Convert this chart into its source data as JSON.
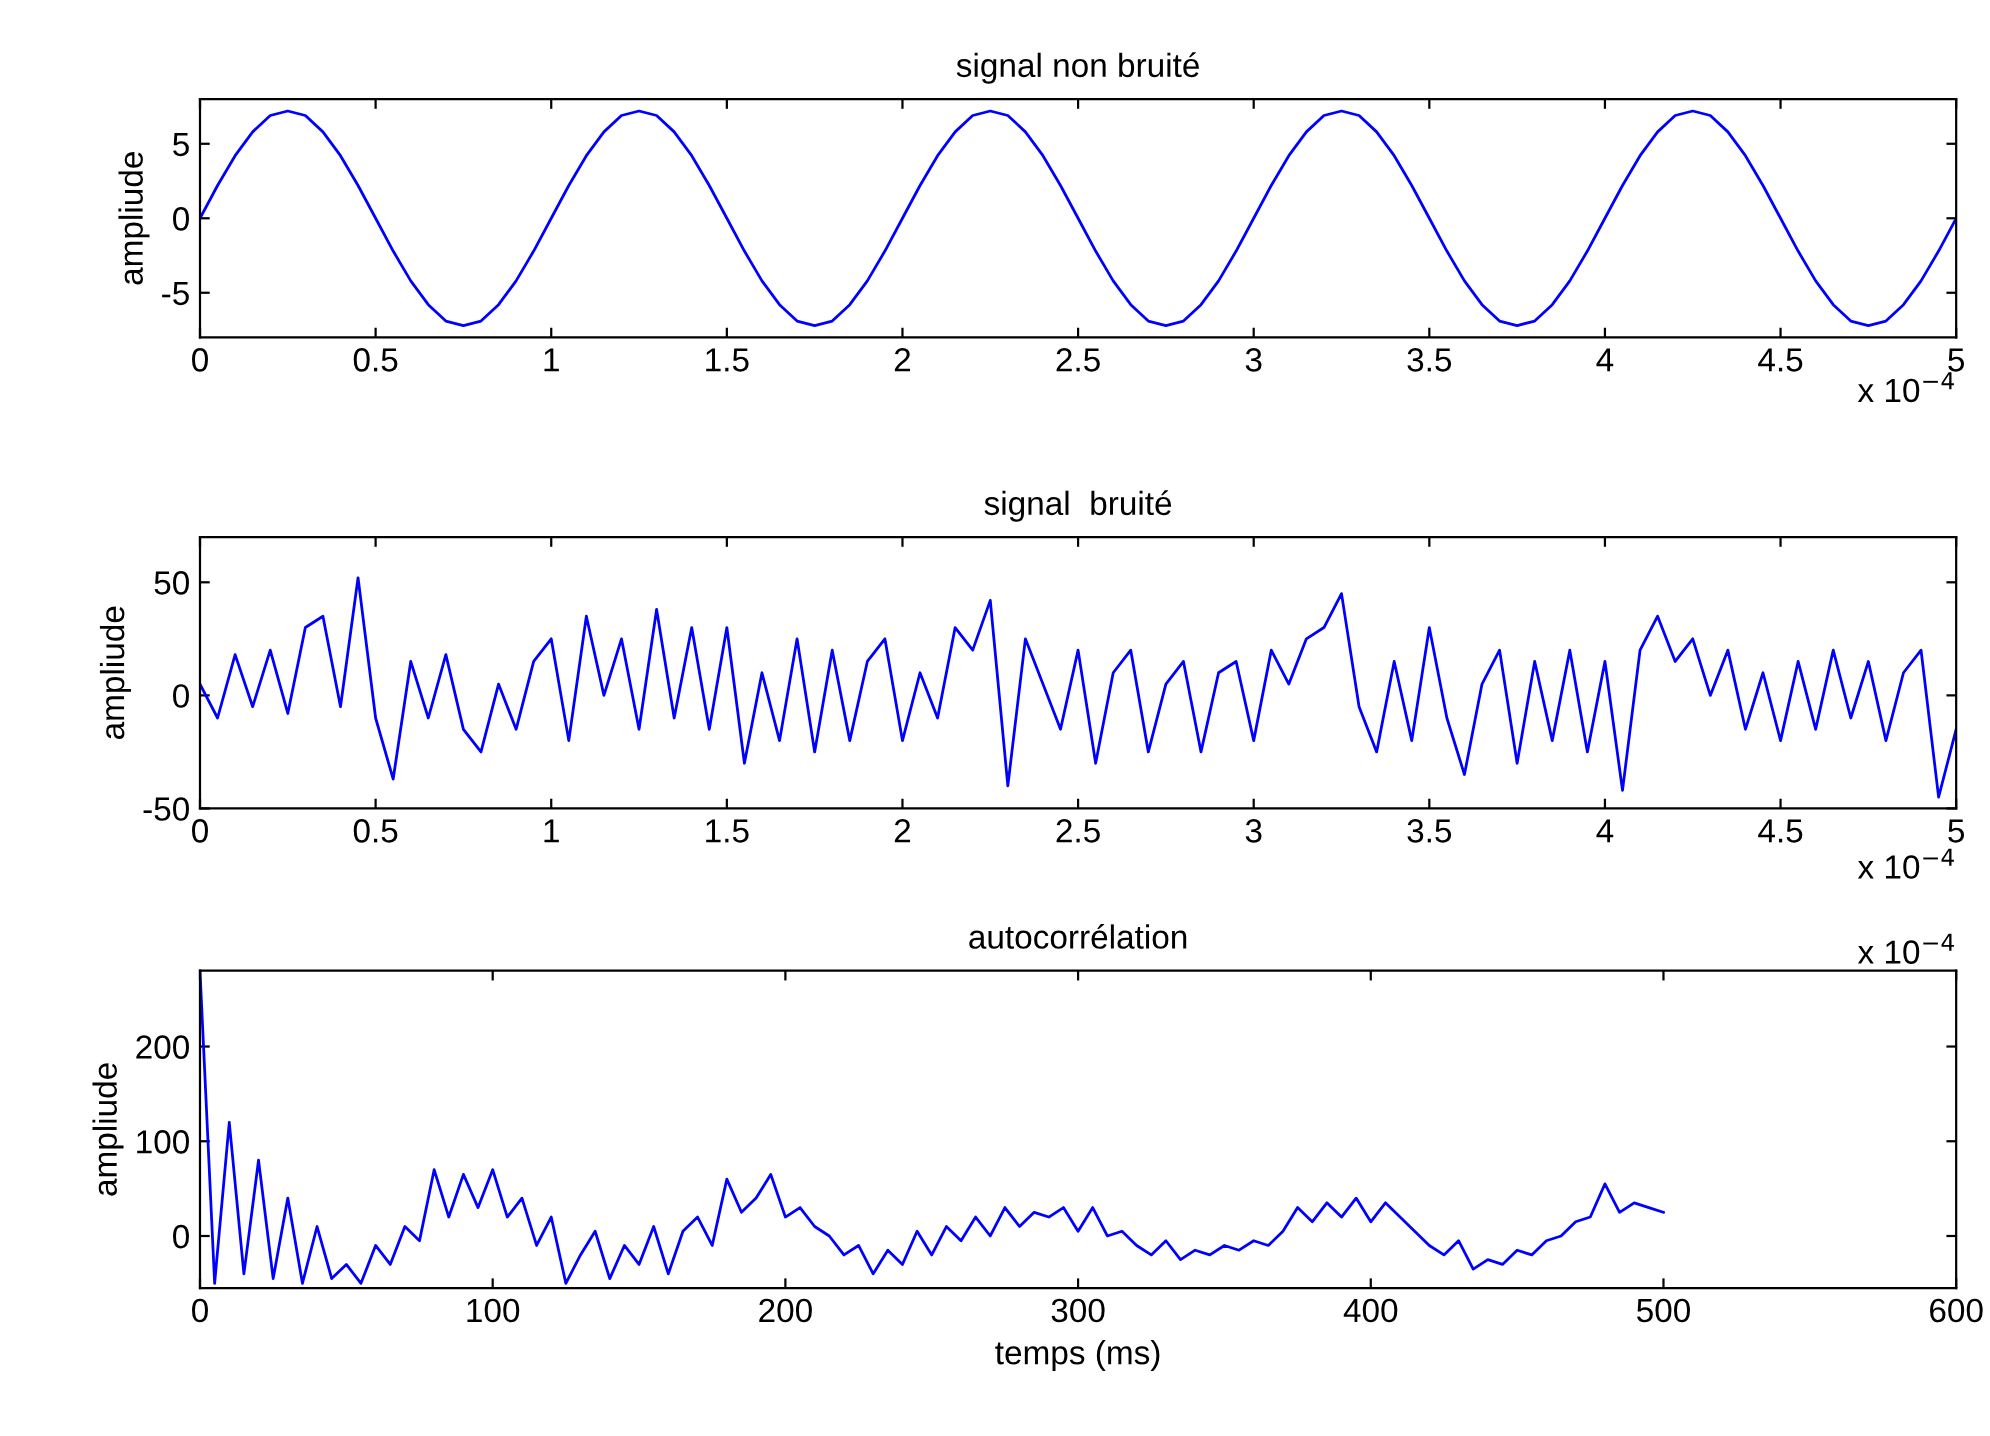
{
  "chart_data": [
    {
      "type": "line",
      "title": "signal non bruité",
      "ylabel": "ampliude",
      "color": "#0000ff",
      "x": [
        0,
        0.05,
        0.1,
        0.15,
        0.2,
        0.25,
        0.3,
        0.35,
        0.4,
        0.45,
        0.5,
        0.55,
        0.6,
        0.65,
        0.7,
        0.75,
        0.8,
        0.85,
        0.9,
        0.95,
        1,
        1.05,
        1.1,
        1.15,
        1.2,
        1.25,
        1.3,
        1.35,
        1.4,
        1.45,
        1.5,
        1.55,
        1.6,
        1.65,
        1.7,
        1.75,
        1.8,
        1.85,
        1.9,
        1.95,
        2,
        2.05,
        2.1,
        2.15,
        2.2,
        2.25,
        2.3,
        2.35,
        2.4,
        2.45,
        2.5,
        2.55,
        2.6,
        2.65,
        2.7,
        2.75,
        2.8,
        2.85,
        2.9,
        2.95,
        3,
        3.05,
        3.1,
        3.15,
        3.2,
        3.25,
        3.3,
        3.35,
        3.4,
        3.45,
        3.5,
        3.55,
        3.6,
        3.65,
        3.7,
        3.75,
        3.8,
        3.85,
        3.9,
        3.95,
        4,
        4.05,
        4.1,
        4.15,
        4.2,
        4.25,
        4.3,
        4.35,
        4.4,
        4.45,
        4.5,
        4.55,
        4.6,
        4.65,
        4.7,
        4.75,
        4.8,
        4.85,
        4.9,
        4.95,
        5
      ],
      "values": [
        0,
        2.2,
        4.2,
        5.8,
        6.9,
        7.2,
        6.9,
        5.8,
        4.2,
        2.2,
        0,
        -2.2,
        -4.2,
        -5.8,
        -6.9,
        -7.2,
        -6.9,
        -5.8,
        -4.2,
        -2.2,
        0,
        2.2,
        4.2,
        5.8,
        6.9,
        7.2,
        6.9,
        5.8,
        4.2,
        2.2,
        0,
        -2.2,
        -4.2,
        -5.8,
        -6.9,
        -7.2,
        -6.9,
        -5.8,
        -4.2,
        -2.2,
        0,
        2.2,
        4.2,
        5.8,
        6.9,
        7.2,
        6.9,
        5.8,
        4.2,
        2.2,
        0,
        -2.2,
        -4.2,
        -5.8,
        -6.9,
        -7.2,
        -6.9,
        -5.8,
        -4.2,
        -2.2,
        0,
        2.2,
        4.2,
        5.8,
        6.9,
        7.2,
        6.9,
        5.8,
        4.2,
        2.2,
        0,
        -2.2,
        -4.2,
        -5.8,
        -6.9,
        -7.2,
        -6.9,
        -5.8,
        -4.2,
        -2.2,
        0,
        2.2,
        4.2,
        5.8,
        6.9,
        7.2,
        6.9,
        5.8,
        4.2,
        2.2,
        0,
        -2.2,
        -4.2,
        -5.8,
        -6.9,
        -7.2,
        -6.9,
        -5.8,
        -4.2,
        -2.2,
        0
      ],
      "xlim": [
        0,
        5
      ],
      "ylim": [
        -8,
        8
      ],
      "yticks": [
        -5,
        0,
        5
      ],
      "xticks": [
        0,
        0.5,
        1,
        1.5,
        2,
        2.5,
        3,
        3.5,
        4,
        4.5,
        5
      ],
      "annotations": [
        "x 10$^{−4}$"
      ]
    },
    {
      "type": "line",
      "title": "signal  bruité",
      "ylabel": "ampliude",
      "color": "#0000ff",
      "x": [
        0,
        0.05,
        0.1,
        0.15,
        0.2,
        0.25,
        0.3,
        0.35,
        0.4,
        0.45,
        0.5,
        0.55,
        0.6,
        0.65,
        0.7,
        0.75,
        0.8,
        0.85,
        0.9,
        0.95,
        1,
        1.05,
        1.1,
        1.15,
        1.2,
        1.25,
        1.3,
        1.35,
        1.4,
        1.45,
        1.5,
        1.55,
        1.6,
        1.65,
        1.7,
        1.75,
        1.8,
        1.85,
        1.9,
        1.95,
        2,
        2.05,
        2.1,
        2.15,
        2.2,
        2.25,
        2.3,
        2.35,
        2.4,
        2.45,
        2.5,
        2.55,
        2.6,
        2.65,
        2.7,
        2.75,
        2.8,
        2.85,
        2.9,
        2.95,
        3,
        3.05,
        3.1,
        3.15,
        3.2,
        3.25,
        3.3,
        3.35,
        3.4,
        3.45,
        3.5,
        3.55,
        3.6,
        3.65,
        3.7,
        3.75,
        3.8,
        3.85,
        3.9,
        3.95,
        4,
        4.05,
        4.1,
        4.15,
        4.2,
        4.25,
        4.3,
        4.35,
        4.4,
        4.45,
        4.5,
        4.55,
        4.6,
        4.65,
        4.7,
        4.75,
        4.8,
        4.85,
        4.9,
        4.95,
        5
      ],
      "values": [
        5,
        -10,
        18,
        -5,
        20,
        -8,
        30,
        35,
        -5,
        52,
        -10,
        -37,
        15,
        -10,
        18,
        -15,
        -25,
        5,
        -15,
        15,
        25,
        -20,
        35,
        0,
        25,
        -15,
        38,
        -10,
        30,
        -15,
        30,
        -30,
        10,
        -20,
        25,
        -25,
        20,
        -20,
        15,
        25,
        -20,
        10,
        -10,
        30,
        20,
        42,
        -40,
        25,
        5,
        -15,
        20,
        -30,
        10,
        20,
        -25,
        5,
        15,
        -25,
        10,
        15,
        -20,
        20,
        5,
        25,
        30,
        45,
        -5,
        -25,
        15,
        -20,
        30,
        -10,
        -35,
        5,
        20,
        -30,
        15,
        -20,
        20,
        -25,
        15,
        -42,
        20,
        35,
        15,
        25,
        0,
        20,
        -15,
        10,
        -20,
        15,
        -15,
        20,
        -10,
        15,
        -20,
        10,
        20,
        -45,
        -15
      ],
      "xlim": [
        0,
        5
      ],
      "ylim": [
        -50,
        70
      ],
      "yticks": [
        -50,
        0,
        50
      ],
      "xticks": [
        0,
        0.5,
        1,
        1.5,
        2,
        2.5,
        3,
        3.5,
        4,
        4.5,
        5
      ],
      "annotations": [
        "x 10$^{−4}$"
      ]
    },
    {
      "type": "line",
      "title": "autocorrélation",
      "ylabel": "ampliude",
      "xlabel": "temps (ms)",
      "color": "#0000ff",
      "x": [
        0,
        5,
        10,
        15,
        20,
        25,
        30,
        35,
        40,
        45,
        50,
        55,
        60,
        65,
        70,
        75,
        80,
        85,
        90,
        95,
        100,
        105,
        110,
        115,
        120,
        125,
        130,
        135,
        140,
        145,
        150,
        155,
        160,
        165,
        170,
        175,
        180,
        185,
        190,
        195,
        200,
        205,
        210,
        215,
        220,
        225,
        230,
        235,
        240,
        245,
        250,
        255,
        260,
        265,
        270,
        275,
        280,
        285,
        290,
        295,
        300,
        305,
        310,
        315,
        320,
        325,
        330,
        335,
        340,
        345,
        350,
        355,
        360,
        365,
        370,
        375,
        380,
        385,
        390,
        395,
        400,
        405,
        410,
        415,
        420,
        425,
        430,
        435,
        440,
        445,
        450,
        455,
        460,
        465,
        470,
        475,
        480,
        485,
        490,
        495,
        500
      ],
      "values": [
        280,
        -50,
        120,
        -40,
        80,
        -45,
        40,
        -50,
        10,
        -45,
        -30,
        -50,
        -10,
        -30,
        10,
        -5,
        70,
        20,
        65,
        30,
        70,
        20,
        40,
        -10,
        20,
        -50,
        -20,
        5,
        -45,
        -10,
        -30,
        10,
        -40,
        5,
        20,
        -10,
        60,
        25,
        40,
        65,
        20,
        30,
        10,
        0,
        -20,
        -10,
        -40,
        -15,
        -30,
        5,
        -20,
        10,
        -5,
        20,
        0,
        30,
        10,
        25,
        20,
        30,
        5,
        30,
        0,
        5,
        -10,
        -20,
        -5,
        -25,
        -15,
        -20,
        -10,
        -15,
        -5,
        -10,
        5,
        30,
        15,
        35,
        20,
        40,
        15,
        35,
        20,
        5,
        -10,
        -20,
        -5,
        -35,
        -25,
        -30,
        -15,
        -20,
        -5,
        0,
        15,
        20,
        55,
        25,
        35,
        30,
        25
      ],
      "xlim": [
        0,
        600
      ],
      "ylim": [
        -55,
        280
      ],
      "yticks": [
        0,
        100,
        200
      ],
      "xticks": [
        0,
        100,
        200,
        300,
        400,
        500,
        600
      ],
      "annotations": [
        "x 10$^{−4}$"
      ]
    }
  ]
}
